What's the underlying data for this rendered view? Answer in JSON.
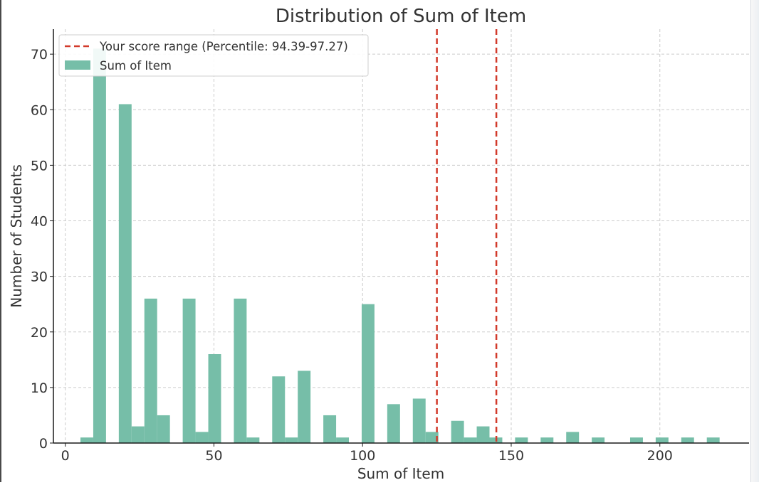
{
  "chart_data": {
    "type": "bar",
    "title": "Distribution of Sum of Item",
    "xlabel": "Sum of Item",
    "ylabel": "Number of Students",
    "xlim": [
      -4,
      230
    ],
    "ylim": [
      0,
      74.5
    ],
    "xticks": [
      0,
      50,
      100,
      150,
      200
    ],
    "yticks": [
      0,
      10,
      20,
      30,
      40,
      50,
      60,
      70
    ],
    "grid": true,
    "legend": {
      "placement": "top-left",
      "entries": [
        {
          "label": "Your score range (Percentile: 94.39-97.27)",
          "kind": "dashed-line",
          "color": "#d23a2b"
        },
        {
          "label": "Sum of Item",
          "kind": "patch",
          "color": "#76bea8"
        }
      ]
    },
    "series": [
      {
        "name": "Sum of Item",
        "color": "#76bea8",
        "bin_width": 4.3,
        "bins": [
          {
            "x": 5.1,
            "count": 1
          },
          {
            "x": 9.4,
            "count": 71
          },
          {
            "x": 18.0,
            "count": 61
          },
          {
            "x": 22.3,
            "count": 3
          },
          {
            "x": 26.6,
            "count": 26
          },
          {
            "x": 30.9,
            "count": 5
          },
          {
            "x": 39.5,
            "count": 26
          },
          {
            "x": 43.8,
            "count": 2
          },
          {
            "x": 48.1,
            "count": 16
          },
          {
            "x": 56.7,
            "count": 26
          },
          {
            "x": 61.0,
            "count": 1
          },
          {
            "x": 69.6,
            "count": 12
          },
          {
            "x": 73.9,
            "count": 1
          },
          {
            "x": 78.2,
            "count": 13
          },
          {
            "x": 86.8,
            "count": 5
          },
          {
            "x": 91.1,
            "count": 1
          },
          {
            "x": 99.7,
            "count": 25
          },
          {
            "x": 108.3,
            "count": 7
          },
          {
            "x": 116.9,
            "count": 8
          },
          {
            "x": 121.2,
            "count": 2
          },
          {
            "x": 129.8,
            "count": 4
          },
          {
            "x": 134.1,
            "count": 1
          },
          {
            "x": 138.4,
            "count": 3
          },
          {
            "x": 142.7,
            "count": 1
          },
          {
            "x": 151.3,
            "count": 1
          },
          {
            "x": 159.9,
            "count": 1
          },
          {
            "x": 168.5,
            "count": 2
          },
          {
            "x": 177.1,
            "count": 1
          },
          {
            "x": 190.0,
            "count": 1
          },
          {
            "x": 198.6,
            "count": 1
          },
          {
            "x": 207.2,
            "count": 1
          },
          {
            "x": 215.8,
            "count": 1
          }
        ]
      }
    ],
    "reference_lines": [
      {
        "x": 125,
        "color": "#d23a2b",
        "style": "dashed"
      },
      {
        "x": 145,
        "color": "#d23a2b",
        "style": "dashed"
      }
    ]
  }
}
